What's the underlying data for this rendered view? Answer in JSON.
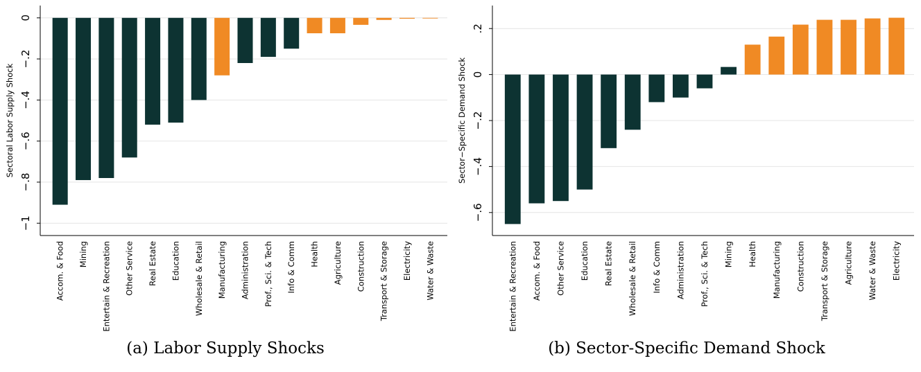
{
  "chart_data": [
    {
      "type": "bar",
      "caption": "(a) Labor Supply Shocks",
      "y_label": "Sectoral Labor Supply Shock",
      "categories": [
        "Accom. & Food",
        "Mining",
        "Entertain & Recreation",
        "Other Service",
        "Real Estate",
        "Education",
        "Wholesale & Retail",
        "Manufacturing",
        "Administration",
        "Prof., Sci. & Tech",
        "Info & Comm",
        "Health",
        "Agriculture",
        "Construction",
        "Transport & Storage",
        "Electricity",
        "Water & Waste"
      ],
      "values": [
        -0.91,
        -0.79,
        -0.78,
        -0.68,
        -0.52,
        -0.51,
        -0.4,
        -0.28,
        -0.22,
        -0.19,
        -0.15,
        -0.075,
        -0.075,
        -0.034,
        -0.01,
        -0.004,
        -0.003
      ],
      "colors": [
        "#0d3332",
        "#0d3332",
        "#0d3332",
        "#0d3332",
        "#0d3332",
        "#0d3332",
        "#0d3332",
        "#f08a24",
        "#0d3332",
        "#0d3332",
        "#0d3332",
        "#f08a24",
        "#f08a24",
        "#f08a24",
        "#f08a24",
        "#f08a24",
        "#f08a24"
      ],
      "ylim": [
        -1.06,
        0.06
      ],
      "yticks": [
        {
          "value": -1,
          "label": "−1"
        },
        {
          "value": -0.8,
          "label": "−.8"
        },
        {
          "value": -0.6,
          "label": "−.6"
        },
        {
          "value": -0.4,
          "label": "−.4"
        },
        {
          "value": -0.2,
          "label": "−.2"
        },
        0
      ],
      "grid": true
    },
    {
      "type": "bar",
      "caption": "(b) Sector-Specific Demand Shock",
      "y_label": "Sector−Specific Demand Shock",
      "categories": [
        "Entertain & Recreation",
        "Accom. & Food",
        "Other Service",
        "Education",
        "Real Estate",
        "Wholesale & Retail",
        "Info & Comm",
        "Administration",
        "Prof., Sci. & Tech",
        "Mining",
        "Health",
        "Manufacturing",
        "Construction",
        "Transport & Storage",
        "Agriculture",
        "Water & Waste",
        "Electricity"
      ],
      "values": [
        -0.65,
        -0.56,
        -0.55,
        -0.5,
        -0.32,
        -0.24,
        -0.12,
        -0.1,
        -0.06,
        0.033,
        0.13,
        0.165,
        0.217,
        0.238,
        0.238,
        0.244,
        0.247
      ],
      "colors": [
        "#0d3332",
        "#0d3332",
        "#0d3332",
        "#0d3332",
        "#0d3332",
        "#0d3332",
        "#0d3332",
        "#0d3332",
        "#0d3332",
        "#0d3332",
        "#f08a24",
        "#f08a24",
        "#f08a24",
        "#f08a24",
        "#f08a24",
        "#f08a24",
        "#f08a24"
      ],
      "ylim": [
        -0.7,
        0.3
      ],
      "yticks": [
        {
          "value": -0.6,
          "label": "−.6"
        },
        {
          "value": -0.4,
          "label": "−.4"
        },
        {
          "value": -0.2,
          "label": "−.2"
        },
        0,
        {
          "value": 0.2,
          "label": ".2"
        }
      ],
      "grid": true
    }
  ]
}
